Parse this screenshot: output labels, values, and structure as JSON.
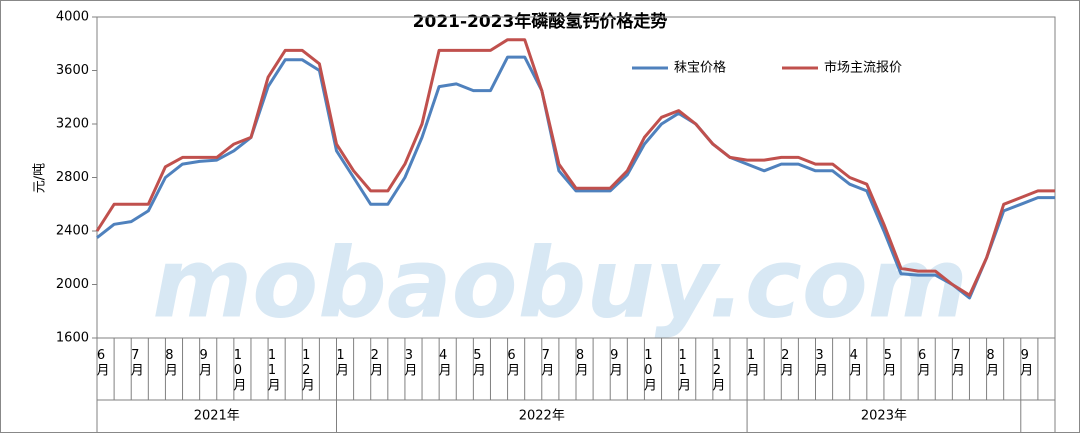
{
  "chart_data": {
    "type": "line",
    "title": "2021-2023年磷酸氢钙价格走势",
    "y_label": "元/吨",
    "watermark": "mobaobuy.com",
    "categories": [
      "6月",
      null,
      "7月",
      null,
      "8月",
      null,
      "9月",
      null,
      "10月",
      null,
      "11月",
      null,
      "12月",
      null,
      "1月",
      null,
      "2月",
      null,
      "3月",
      null,
      "4月",
      null,
      "5月",
      null,
      "6月",
      null,
      "7月",
      null,
      "8月",
      null,
      "9月",
      null,
      "10月",
      null,
      "11月",
      null,
      "12月",
      null,
      "1月",
      null,
      "2月",
      null,
      "3月",
      null,
      "4月",
      null,
      "5月",
      null,
      "6月",
      null,
      "7月",
      null,
      "8月",
      null,
      "9月",
      null,
      null
    ],
    "year_labels": [
      "2021年",
      "2022年",
      "2023年"
    ],
    "series": [
      {
        "name": "秣宝价格",
        "color": "#4f81bd",
        "values": [
          2350,
          2450,
          2470,
          2550,
          2800,
          2900,
          2920,
          2930,
          3000,
          3100,
          3480,
          3680,
          3680,
          3600,
          3000,
          2800,
          2600,
          2600,
          2800,
          3100,
          3480,
          3500,
          3450,
          3450,
          3700,
          3700,
          3450,
          2850,
          2700,
          2700,
          2700,
          2820,
          3050,
          3200,
          3280,
          3200,
          3050,
          2950,
          2900,
          2850,
          2900,
          2900,
          2850,
          2850,
          2750,
          2700,
          2400,
          2080,
          2070,
          2070,
          2000,
          1900,
          2200,
          2550,
          2600,
          2650,
          2650
        ]
      },
      {
        "name": "市场主流报价",
        "color": "#c0504d",
        "values": [
          2400,
          2600,
          2600,
          2600,
          2880,
          2950,
          2950,
          2950,
          3050,
          3100,
          3550,
          3750,
          3750,
          3650,
          3050,
          2850,
          2700,
          2700,
          2900,
          3200,
          3750,
          3750,
          3750,
          3750,
          3830,
          3830,
          3450,
          2900,
          2720,
          2720,
          2720,
          2850,
          3100,
          3250,
          3300,
          3200,
          3050,
          2950,
          2930,
          2930,
          2950,
          2950,
          2900,
          2900,
          2800,
          2750,
          2450,
          2120,
          2100,
          2100,
          2000,
          1920,
          2200,
          2600,
          2650,
          2700,
          2700
        ]
      }
    ],
    "ylim": [
      1600,
      4000
    ],
    "yticks": [
      1600,
      2000,
      2400,
      2800,
      3200,
      3600,
      4000
    ],
    "legend": "top-right"
  }
}
